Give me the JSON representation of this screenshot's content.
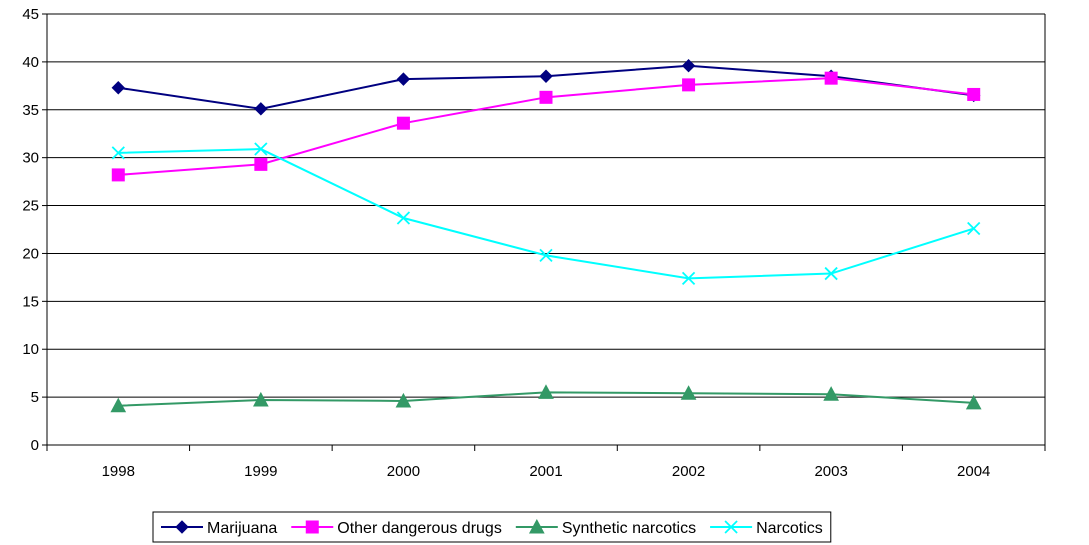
{
  "chart_data": {
    "type": "line",
    "title": "",
    "xlabel": "",
    "ylabel": "",
    "categories": [
      "1998",
      "1999",
      "2000",
      "2001",
      "2002",
      "2003",
      "2004"
    ],
    "ylim": [
      0,
      45
    ],
    "yticks": [
      0,
      5,
      10,
      15,
      20,
      25,
      30,
      35,
      40,
      45
    ],
    "grid": true,
    "legend_position": "bottom",
    "series": [
      {
        "name": "Marijuana",
        "marker": "diamond",
        "color": "#000080",
        "values": [
          37.3,
          35.1,
          38.2,
          38.5,
          39.6,
          38.5,
          36.5
        ]
      },
      {
        "name": "Other dangerous drugs",
        "marker": "square",
        "color": "#FF00FF",
        "values": [
          28.2,
          29.3,
          33.6,
          36.3,
          37.6,
          38.3,
          36.6
        ]
      },
      {
        "name": "Synthetic narcotics",
        "marker": "triangle",
        "color": "#339966",
        "values": [
          4.1,
          4.7,
          4.6,
          5.5,
          5.4,
          5.3,
          4.4
        ]
      },
      {
        "name": "Narcotics",
        "marker": "x",
        "color": "#00FFFF",
        "values": [
          30.5,
          30.9,
          23.7,
          19.8,
          17.4,
          17.9,
          22.6
        ]
      }
    ]
  }
}
